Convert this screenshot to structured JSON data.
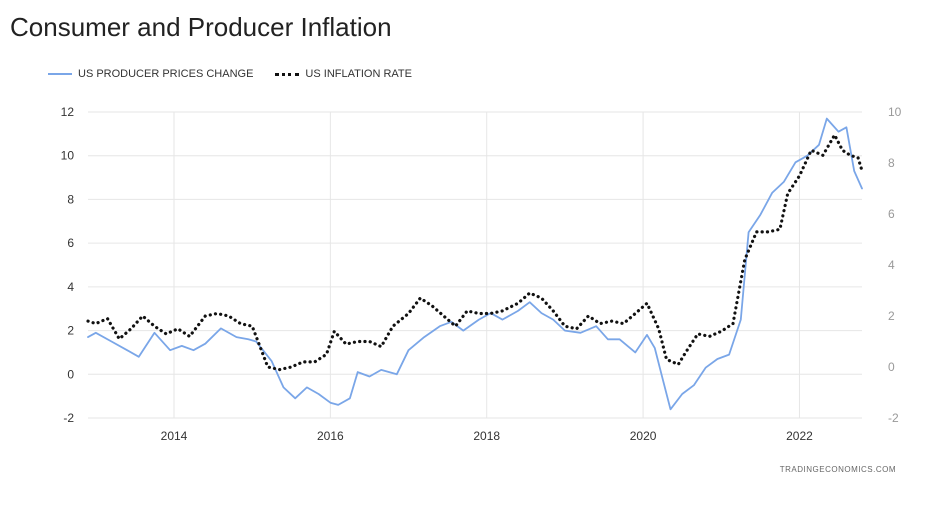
{
  "title": "Consumer and Producer Inflation",
  "source": "TRADINGECONOMICS.COM",
  "colors": {
    "ppi": "#7aa6e8",
    "cpi": "#111111",
    "grid": "#e6e6e6"
  },
  "chart_data": {
    "type": "line",
    "title": "Consumer and Producer Inflation",
    "x_ticks": [
      "2014",
      "2016",
      "2018",
      "2020",
      "2022"
    ],
    "x_range": [
      2012.9,
      2022.8
    ],
    "y_left": {
      "ticks": [
        "12",
        "10",
        "8",
        "6",
        "4",
        "2",
        "0",
        "-2"
      ],
      "range": [
        -2,
        12
      ]
    },
    "y_right": {
      "ticks": [
        "10",
        "8",
        "6",
        "4",
        "2",
        "0",
        "-2"
      ],
      "range": [
        -2,
        10
      ]
    },
    "legend": "top-left",
    "grid": true,
    "series": [
      {
        "name": "US PRODUCER PRICES CHANGE",
        "axis": "left",
        "style": "solid",
        "points": [
          [
            2012.9,
            1.7
          ],
          [
            2013.0,
            1.9
          ],
          [
            2013.2,
            1.5
          ],
          [
            2013.4,
            1.1
          ],
          [
            2013.55,
            0.8
          ],
          [
            2013.75,
            1.9
          ],
          [
            2013.95,
            1.1
          ],
          [
            2014.1,
            1.3
          ],
          [
            2014.25,
            1.1
          ],
          [
            2014.4,
            1.4
          ],
          [
            2014.6,
            2.1
          ],
          [
            2014.8,
            1.7
          ],
          [
            2014.95,
            1.6
          ],
          [
            2015.05,
            1.5
          ],
          [
            2015.25,
            0.6
          ],
          [
            2015.4,
            -0.6
          ],
          [
            2015.55,
            -1.1
          ],
          [
            2015.7,
            -0.6
          ],
          [
            2015.85,
            -0.9
          ],
          [
            2016.0,
            -1.3
          ],
          [
            2016.1,
            -1.4
          ],
          [
            2016.25,
            -1.1
          ],
          [
            2016.35,
            0.1
          ],
          [
            2016.5,
            -0.1
          ],
          [
            2016.65,
            0.2
          ],
          [
            2016.85,
            0.0
          ],
          [
            2017.0,
            1.1
          ],
          [
            2017.2,
            1.7
          ],
          [
            2017.4,
            2.2
          ],
          [
            2017.55,
            2.4
          ],
          [
            2017.7,
            2.0
          ],
          [
            2017.9,
            2.5
          ],
          [
            2018.05,
            2.8
          ],
          [
            2018.2,
            2.5
          ],
          [
            2018.4,
            2.9
          ],
          [
            2018.55,
            3.3
          ],
          [
            2018.7,
            2.8
          ],
          [
            2018.85,
            2.5
          ],
          [
            2019.0,
            2.0
          ],
          [
            2019.2,
            1.9
          ],
          [
            2019.4,
            2.2
          ],
          [
            2019.55,
            1.6
          ],
          [
            2019.7,
            1.6
          ],
          [
            2019.9,
            1.0
          ],
          [
            2020.05,
            1.8
          ],
          [
            2020.15,
            1.2
          ],
          [
            2020.25,
            -0.2
          ],
          [
            2020.35,
            -1.6
          ],
          [
            2020.5,
            -0.9
          ],
          [
            2020.65,
            -0.5
          ],
          [
            2020.8,
            0.3
          ],
          [
            2020.95,
            0.7
          ],
          [
            2021.1,
            0.9
          ],
          [
            2021.25,
            2.5
          ],
          [
            2021.35,
            6.5
          ],
          [
            2021.5,
            7.3
          ],
          [
            2021.65,
            8.3
          ],
          [
            2021.8,
            8.8
          ],
          [
            2021.95,
            9.7
          ],
          [
            2022.1,
            10.0
          ],
          [
            2022.25,
            10.5
          ],
          [
            2022.35,
            11.7
          ],
          [
            2022.5,
            11.1
          ],
          [
            2022.6,
            11.3
          ],
          [
            2022.7,
            9.3
          ],
          [
            2022.8,
            8.5
          ]
        ]
      },
      {
        "name": "US INFLATION RATE",
        "axis": "right",
        "style": "dotted",
        "points": [
          [
            2012.9,
            1.8
          ],
          [
            2013.0,
            1.7
          ],
          [
            2013.15,
            1.9
          ],
          [
            2013.3,
            1.1
          ],
          [
            2013.45,
            1.5
          ],
          [
            2013.6,
            2.0
          ],
          [
            2013.75,
            1.6
          ],
          [
            2013.9,
            1.3
          ],
          [
            2014.05,
            1.5
          ],
          [
            2014.2,
            1.2
          ],
          [
            2014.4,
            2.0
          ],
          [
            2014.55,
            2.1
          ],
          [
            2014.7,
            2.0
          ],
          [
            2014.85,
            1.7
          ],
          [
            2015.0,
            1.6
          ],
          [
            2015.1,
            0.8
          ],
          [
            2015.2,
            0.0
          ],
          [
            2015.35,
            -0.1
          ],
          [
            2015.5,
            0.0
          ],
          [
            2015.65,
            0.2
          ],
          [
            2015.8,
            0.2
          ],
          [
            2015.95,
            0.5
          ],
          [
            2016.05,
            1.4
          ],
          [
            2016.2,
            0.9
          ],
          [
            2016.35,
            1.0
          ],
          [
            2016.5,
            1.0
          ],
          [
            2016.65,
            0.8
          ],
          [
            2016.8,
            1.6
          ],
          [
            2017.0,
            2.1
          ],
          [
            2017.15,
            2.7
          ],
          [
            2017.3,
            2.4
          ],
          [
            2017.45,
            2.0
          ],
          [
            2017.6,
            1.6
          ],
          [
            2017.75,
            2.2
          ],
          [
            2017.9,
            2.1
          ],
          [
            2018.05,
            2.1
          ],
          [
            2018.2,
            2.2
          ],
          [
            2018.4,
            2.5
          ],
          [
            2018.55,
            2.9
          ],
          [
            2018.7,
            2.7
          ],
          [
            2018.85,
            2.2
          ],
          [
            2019.0,
            1.6
          ],
          [
            2019.15,
            1.5
          ],
          [
            2019.3,
            2.0
          ],
          [
            2019.45,
            1.7
          ],
          [
            2019.6,
            1.8
          ],
          [
            2019.75,
            1.7
          ],
          [
            2019.9,
            2.1
          ],
          [
            2020.05,
            2.5
          ],
          [
            2020.2,
            1.5
          ],
          [
            2020.3,
            0.3
          ],
          [
            2020.45,
            0.1
          ],
          [
            2020.55,
            0.6
          ],
          [
            2020.7,
            1.3
          ],
          [
            2020.85,
            1.2
          ],
          [
            2021.0,
            1.4
          ],
          [
            2021.15,
            1.7
          ],
          [
            2021.3,
            4.2
          ],
          [
            2021.45,
            5.3
          ],
          [
            2021.6,
            5.3
          ],
          [
            2021.75,
            5.4
          ],
          [
            2021.85,
            6.8
          ],
          [
            2022.0,
            7.5
          ],
          [
            2022.15,
            8.5
          ],
          [
            2022.3,
            8.3
          ],
          [
            2022.45,
            9.1
          ],
          [
            2022.55,
            8.5
          ],
          [
            2022.65,
            8.3
          ],
          [
            2022.75,
            8.2
          ],
          [
            2022.8,
            7.7
          ]
        ]
      }
    ]
  }
}
